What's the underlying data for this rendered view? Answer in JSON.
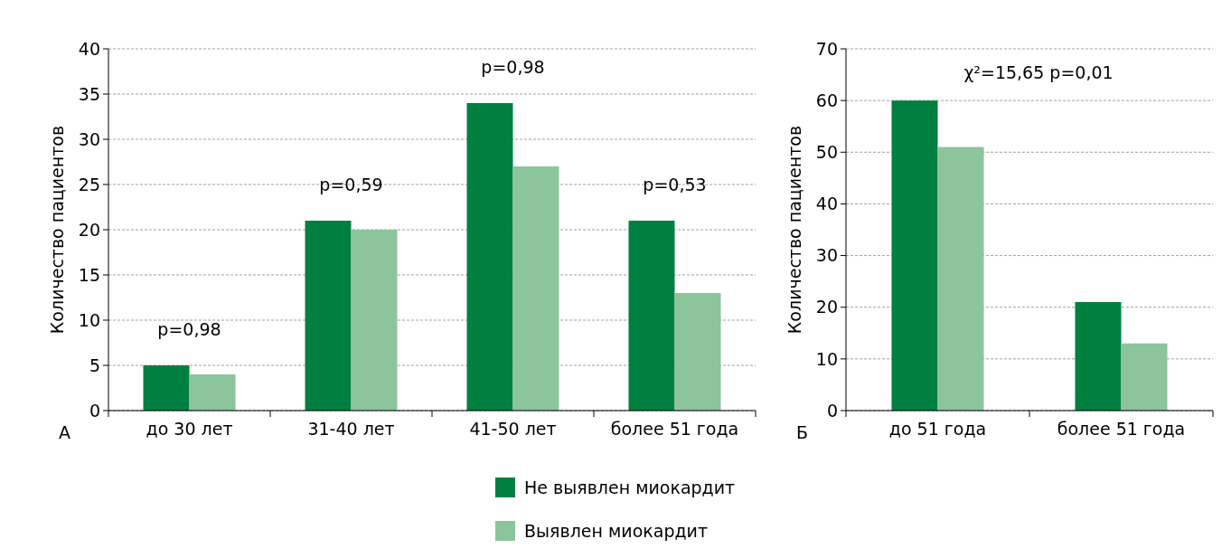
{
  "chart_data": [
    {
      "type": "bar",
      "ylabel": "Количество пациентов",
      "categories": [
        "до 30 лет",
        "31-40 лет",
        "41-50 лет",
        "более 51 года"
      ],
      "series": [
        {
          "name": "Не выявлен миокардит",
          "color": "#008040",
          "values": [
            5,
            21,
            34,
            21
          ]
        },
        {
          "name": "Выявлен миокардит",
          "color": "#8cc49c",
          "values": [
            4,
            20,
            27,
            13
          ]
        }
      ],
      "ylim": [
        0,
        40
      ],
      "yticks": [
        0,
        5,
        10,
        15,
        20,
        25,
        30,
        35,
        40
      ],
      "grid": "y",
      "legend": "bottom",
      "annotations": [
        "p=0,98",
        "p=0,59",
        "p=0,98",
        "p=0,53",
        "А"
      ]
    },
    {
      "type": "bar",
      "ylabel": "Количество пациентов",
      "categories": [
        "до 51 года",
        "более 51 года"
      ],
      "series": [
        {
          "color": "#008040",
          "values": [
            60,
            21
          ]
        },
        {
          "color": "#8cc49c",
          "values": [
            51,
            13
          ]
        }
      ],
      "ylim": [
        0,
        70
      ],
      "yticks": [
        0,
        10,
        20,
        30,
        40,
        50,
        60,
        70
      ],
      "grid": "y",
      "annotations": [
        "χ²=15,65 p=0,01",
        "Б"
      ]
    }
  ]
}
